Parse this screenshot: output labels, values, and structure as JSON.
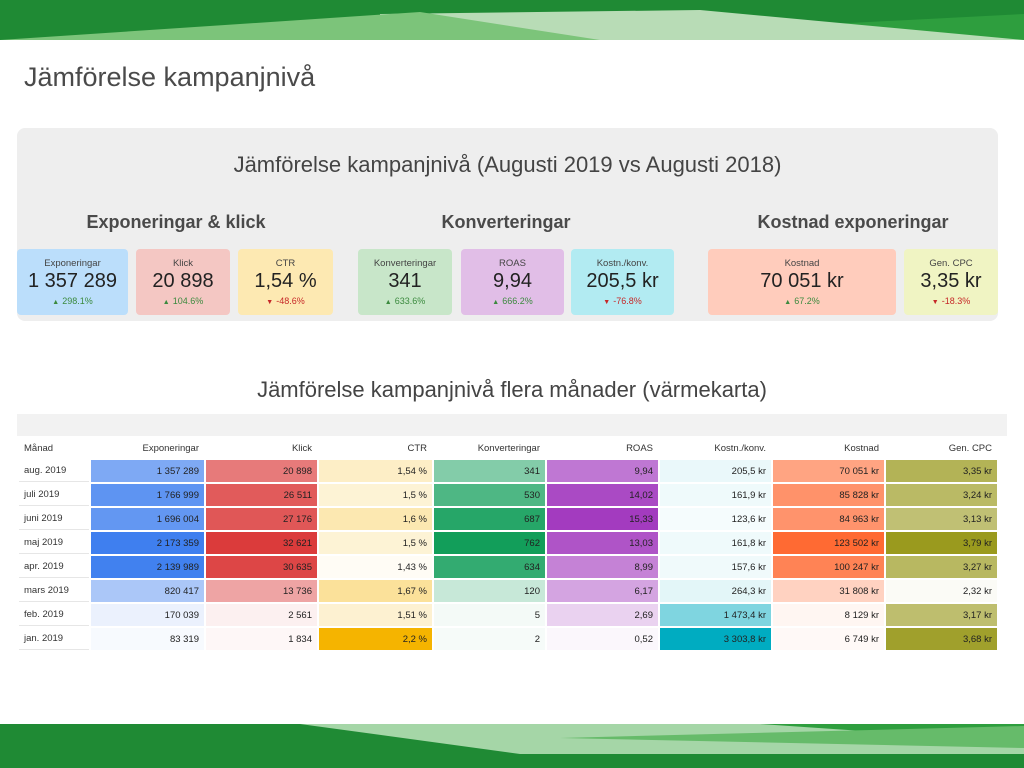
{
  "page": {
    "title": "Jämförelse kampanjnivå"
  },
  "summary": {
    "title": "Jämförelse kampanjnivå (Augusti 2019 vs Augusti 2018)",
    "groups": [
      {
        "title": "Exponeringar & klick"
      },
      {
        "title": "Konverteringar"
      },
      {
        "title": "Kostnad exponeringar"
      }
    ],
    "kpis": [
      {
        "label": "Exponeringar",
        "value": "1 357 289",
        "change": "298.1%",
        "direction": "up",
        "color": "#bbdefb"
      },
      {
        "label": "Klick",
        "value": "20 898",
        "change": "104.6%",
        "direction": "up",
        "color": "#f4c7c3"
      },
      {
        "label": "CTR",
        "value": "1,54 %",
        "change": "-48.6%",
        "direction": "down",
        "color": "#fde9b2"
      },
      {
        "label": "Konverteringar",
        "value": "341",
        "change": "633.6%",
        "direction": "up",
        "color": "#c8e6c9"
      },
      {
        "label": "ROAS",
        "value": "9,94",
        "change": "666.2%",
        "direction": "up",
        "color": "#e1bee7"
      },
      {
        "label": "Kostn./konv.",
        "value": "205,5 kr",
        "change": "-76.8%",
        "direction": "down",
        "color": "#b2ebf2"
      },
      {
        "label": "Kostnad",
        "value": "70 051 kr",
        "change": "67.2%",
        "direction": "up",
        "color": "#ffccbc"
      },
      {
        "label": "Gen. CPC",
        "value": "3,35 kr",
        "change": "-18.3%",
        "direction": "down",
        "color": "#f0f4c3"
      }
    ]
  },
  "heatmap": {
    "title": "Jämförelse kampanjnivå flera månader (värmekarta)",
    "columns": [
      "Månad",
      "Exponeringar",
      "Klick",
      "CTR",
      "Konverteringar",
      "ROAS",
      "Kostn./konv.",
      "Kostnad",
      "Gen. CPC"
    ],
    "column_colors": [
      "#3f7fef",
      "#db3b3b",
      "#f5b400",
      "#129e5a",
      "#a33bbf",
      "#00acc1",
      "#ff6a33",
      "#9a9a1e"
    ],
    "months": [
      "aug. 2019",
      "juli 2019",
      "juni 2019",
      "maj 2019",
      "apr. 2019",
      "mars 2019",
      "feb. 2019",
      "jan. 2019"
    ],
    "rows": [
      [
        "1 357 289",
        "20 898",
        "1,54 %",
        "341",
        "9,94",
        "205,5 kr",
        "70 051 kr",
        "3,35 kr"
      ],
      [
        "1 766 999",
        "26 511",
        "1,5 %",
        "530",
        "14,02",
        "161,9 kr",
        "85 828 kr",
        "3,24 kr"
      ],
      [
        "1 696 004",
        "27 176",
        "1,6 %",
        "687",
        "15,33",
        "123,6 kr",
        "84 963 kr",
        "3,13 kr"
      ],
      [
        "2 173 359",
        "32 621",
        "1,5 %",
        "762",
        "13,03",
        "161,8 kr",
        "123 502 kr",
        "3,79 kr"
      ],
      [
        "2 139 989",
        "30 635",
        "1,43 %",
        "634",
        "8,99",
        "157,6 kr",
        "100 247 kr",
        "3,27 kr"
      ],
      [
        "820 417",
        "13 736",
        "1,67 %",
        "120",
        "6,17",
        "264,3 kr",
        "31 808 kr",
        "2,32 kr"
      ],
      [
        "170 039",
        "2 561",
        "1,51 %",
        "5",
        "2,69",
        "1 473,4 kr",
        "8 129 kr",
        "3,17 kr"
      ],
      [
        "83 319",
        "1 834",
        "2,2 %",
        "2",
        "0,52",
        "3 303,8 kr",
        "6 749 kr",
        "3,68 kr"
      ]
    ]
  }
}
